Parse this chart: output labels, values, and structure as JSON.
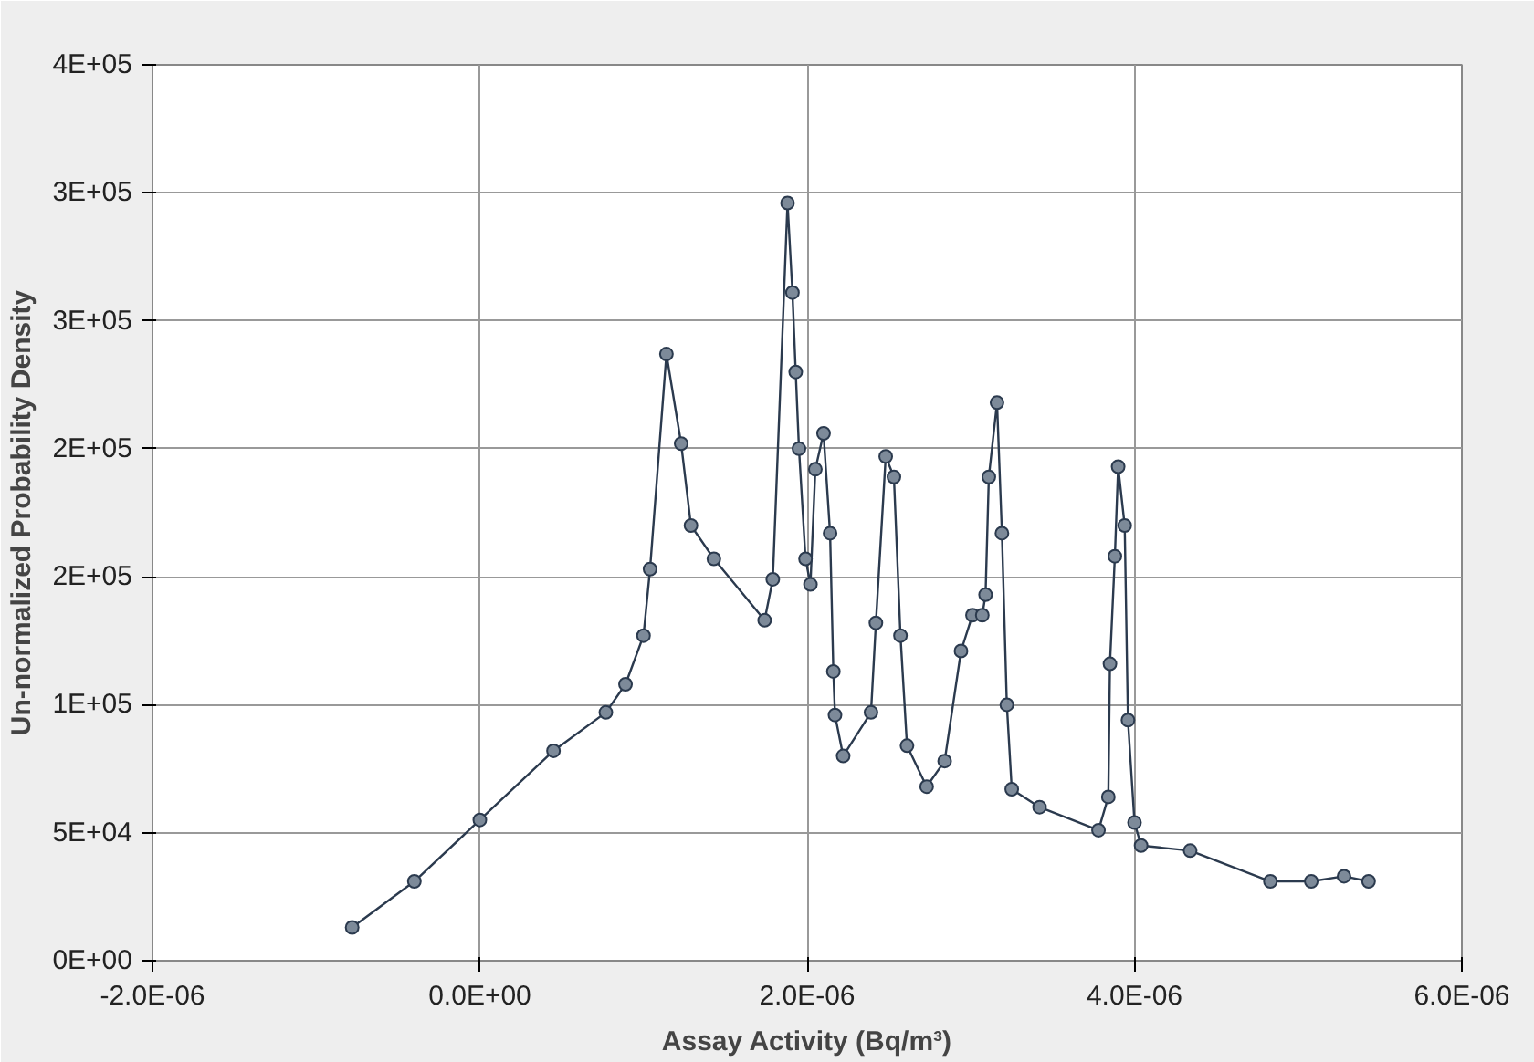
{
  "chart_data": {
    "type": "line",
    "xlabel": "Assay Activity (Bq/m³)",
    "ylabel": "Un-normalized Probability Density",
    "x": [
      -7.8e-07,
      -4e-07,
      0.0,
      4.5e-07,
      7.7e-07,
      8.9e-07,
      1e-06,
      1.04e-06,
      1.14e-06,
      1.23e-06,
      1.29e-06,
      1.43e-06,
      1.74e-06,
      1.79e-06,
      1.88e-06,
      1.91e-06,
      1.93e-06,
      1.95e-06,
      1.99e-06,
      2.02e-06,
      2.05e-06,
      2.1e-06,
      2.14e-06,
      2.16e-06,
      2.17e-06,
      2.22e-06,
      2.39e-06,
      2.42e-06,
      2.48e-06,
      2.53e-06,
      2.57e-06,
      2.61e-06,
      2.73e-06,
      2.84e-06,
      2.94e-06,
      3.01e-06,
      3.07e-06,
      3.09e-06,
      3.11e-06,
      3.16e-06,
      3.19e-06,
      3.22e-06,
      3.25e-06,
      3.42e-06,
      3.78e-06,
      3.84e-06,
      3.85e-06,
      3.88e-06,
      3.9e-06,
      3.94e-06,
      3.96e-06,
      4e-06,
      4.04e-06,
      4.34e-06,
      4.83e-06,
      5.08e-06,
      5.28e-06,
      5.43e-06
    ],
    "values": [
      13000,
      31000,
      55000,
      82000,
      97000,
      108000,
      127000,
      153000,
      237000,
      202000,
      170000,
      157000,
      133000,
      149000,
      296000,
      261000,
      230000,
      200000,
      157000,
      147000,
      192000,
      206000,
      167000,
      113000,
      96000,
      80000,
      97000,
      132000,
      197000,
      189000,
      127000,
      84000,
      68000,
      78000,
      121000,
      135000,
      135000,
      143000,
      189000,
      218000,
      167000,
      100000,
      67000,
      60000,
      51000,
      64000,
      116000,
      158000,
      193000,
      170000,
      94000,
      54000,
      45000,
      43000,
      31000,
      31000,
      33000,
      31000
    ],
    "color": "#2b3a4e",
    "marker": "circle",
    "line_style": "solid",
    "grid": true,
    "xlim": [
      -2e-06,
      6e-06
    ],
    "xticks": [
      {
        "value": -2e-06,
        "label": "-2.0E-06"
      },
      {
        "value": 0.0,
        "label": "0.0E+00"
      },
      {
        "value": 2e-06,
        "label": "2.0E-06"
      },
      {
        "value": 4e-06,
        "label": "4.0E-06"
      },
      {
        "value": 6e-06,
        "label": "6.0E-06"
      }
    ],
    "ylim": [
      0,
      350000
    ],
    "yticks": [
      {
        "value": 0,
        "label": "0E+00"
      },
      {
        "value": 50000,
        "label": "5E+04"
      },
      {
        "value": 100000,
        "label": "1E+05"
      },
      {
        "value": 150000,
        "label": "2E+05"
      },
      {
        "value": 200000,
        "label": "2E+05"
      },
      {
        "value": 250000,
        "label": "3E+05"
      },
      {
        "value": 300000,
        "label": "3E+05"
      },
      {
        "value": 350000,
        "label": "4E+05"
      }
    ]
  }
}
